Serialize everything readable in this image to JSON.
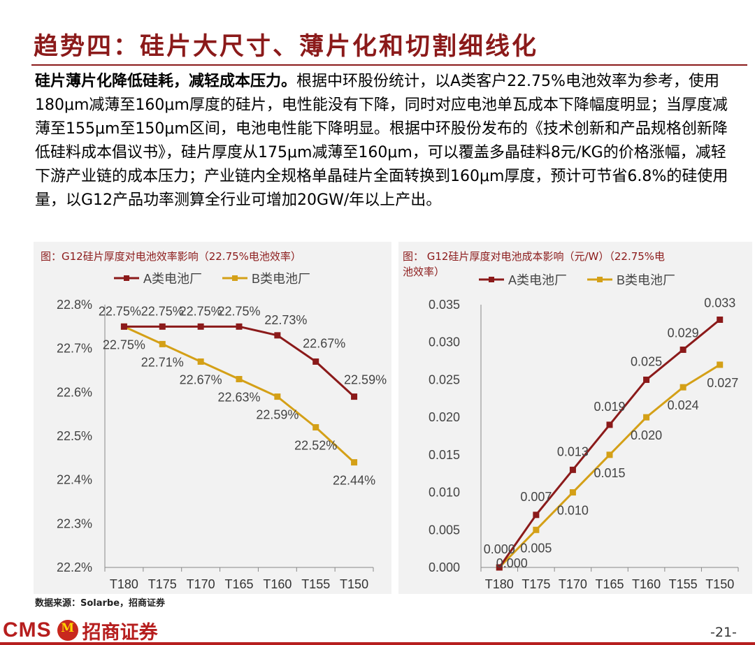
{
  "page": {
    "title": "趋势四：硅片大尺寸、薄片化和切割细线化",
    "paragraph_lead": "硅片薄片化降低硅耗，减轻成本压力。",
    "paragraph_body": "根据中环股份统计，以A类客户22.75%电池效率为参考，使用180μm减薄至160μm厚度的硅片，电性能没有下降，同时对应电池单瓦成本下降幅度明显；当厚度减薄至155μm至150μm区间，电池电性能下降明显。根据中环股份发布的《技术创新和产品规格创新降低硅料成本倡议书》，硅片厚度从175μm减薄至160μm，可以覆盖多晶硅料8元/KG的价格涨幅，减轻下游产业链的成本压力；产业链内全规格单晶硅片全面转换到160μm厚度，预计可节省6.8%的硅使用量，以G12产品功率测算全行业可增加20GW/年以上产出。",
    "source": "数据来源：Solarbe，招商证券",
    "brand_latin": "CMS",
    "brand_cn": "招商证券",
    "logo_glyph": "M",
    "page_number": "-21-"
  },
  "chart_data": [
    {
      "type": "line",
      "title": "图：G12硅片厚度对电池效率影响（22.75%电池效率）",
      "categories": [
        "T180",
        "T175",
        "T170",
        "T165",
        "T160",
        "T155",
        "T150"
      ],
      "series": [
        {
          "name": "A类电池厂",
          "color": "#8b1a1a",
          "values": [
            22.75,
            22.75,
            22.75,
            22.75,
            22.73,
            22.67,
            22.59
          ],
          "labels": [
            "22.75%",
            "22.75%",
            "22.75%",
            "22.75%",
            "22.73%",
            "22.67%",
            "22.59%"
          ]
        },
        {
          "name": "B类电池厂",
          "color": "#d4a017",
          "values": [
            22.75,
            22.71,
            22.67,
            22.63,
            22.59,
            22.52,
            22.44
          ],
          "labels": [
            "22.75%",
            "22.71%",
            "22.67%",
            "22.63%",
            "22.59%",
            "22.52%",
            "22.44%"
          ]
        }
      ],
      "ylim": [
        22.2,
        22.8
      ],
      "yticks": [
        "22.2%",
        "22.3%",
        "22.4%",
        "22.5%",
        "22.6%",
        "22.7%",
        "22.8%"
      ],
      "legend": "top"
    },
    {
      "type": "line",
      "title": "图： G12硅片厚度对电池成本影响（元/W）（22.75%电池效率）",
      "categories": [
        "T180",
        "T175",
        "T170",
        "T165",
        "T160",
        "T155",
        "T150"
      ],
      "series": [
        {
          "name": "A类电池厂",
          "color": "#8b1a1a",
          "values": [
            0.0,
            0.007,
            0.013,
            0.019,
            0.025,
            0.029,
            0.033
          ],
          "labels": [
            "0.000",
            "0.007",
            "0.013",
            "0.019",
            "0.025",
            "0.029",
            "0.033"
          ]
        },
        {
          "name": "B类电池厂",
          "color": "#d4a017",
          "values": [
            0.0,
            0.005,
            0.01,
            0.015,
            0.02,
            0.024,
            0.027
          ],
          "labels": [
            "0.000",
            "0.005",
            "0.010",
            "0.015",
            "0.020",
            "0.024",
            "0.027"
          ]
        }
      ],
      "ylim": [
        0.0,
        0.035
      ],
      "yticks": [
        "0.000",
        "0.005",
        "0.010",
        "0.015",
        "0.020",
        "0.025",
        "0.030",
        "0.035"
      ],
      "legend": "top"
    }
  ]
}
